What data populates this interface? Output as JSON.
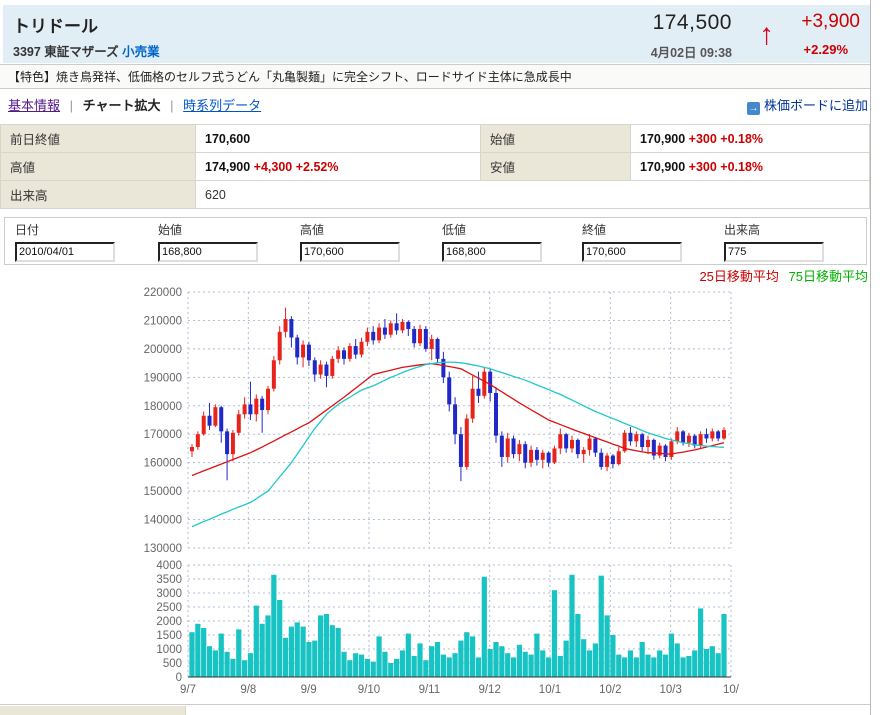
{
  "header": {
    "title": "トリドール",
    "code": "3397",
    "market": "東証マザーズ",
    "industry_link": "小売業",
    "price": "174,500",
    "datetime": "4月02日 09:38",
    "arrow_icon": "↑",
    "change": "+3,900",
    "change_pct": "+2.29%"
  },
  "feature_line": "【特色】焼き鳥発祥、低価格のセルフ式うどん「丸亀製麺」に完全シフト、ロードサイド主体に急成長中",
  "tabs": {
    "basic": "基本情報",
    "chart": "チャート拡大",
    "timeseries": "時系列データ",
    "separator": "|"
  },
  "add_board_link": {
    "icon": "→",
    "label": "株価ボードに追加"
  },
  "summary": {
    "prev_close": {
      "label": "前日終値",
      "value": "170,600",
      "change": ""
    },
    "open": {
      "label": "始値",
      "value": "170,900",
      "change": "+300 +0.18%"
    },
    "high": {
      "label": "高値",
      "value": "174,900",
      "change": "+4,300 +2.52%"
    },
    "low": {
      "label": "安値",
      "value": "170,900",
      "change": "+300 +0.18%"
    },
    "volume": {
      "label": "出来高",
      "value": "620",
      "change": ""
    }
  },
  "quote_inputs": {
    "date": {
      "label": "日付",
      "value": "2010/04/01"
    },
    "open": {
      "label": "始値",
      "value": "168,800"
    },
    "high": {
      "label": "高値",
      "value": "170,600"
    },
    "low": {
      "label": "低値",
      "value": "168,800"
    },
    "close": {
      "label": "終値",
      "value": "170,600"
    },
    "volume": {
      "label": "出来高",
      "value": "775"
    }
  },
  "legend": {
    "ma25": "25日移動平均",
    "ma75": "75日移動平均"
  },
  "colors": {
    "header_bg": "#e2eef6",
    "label_cell_bg": "#eae6d8",
    "accent_red": "#cc0000",
    "candle_up": "#e8231b",
    "candle_down": "#2028c8",
    "ma25_line": "#dd1111",
    "ma75_line": "#1fc8c8",
    "volume_bar": "#17c3c3",
    "legend_green": "#00b400",
    "grid": "#b2bfd5",
    "axis_text": "#666666",
    "link_blue": "#0055cc",
    "visited_purple": "#551a8b"
  },
  "chart_data": {
    "type": "candlestick+volume",
    "title": "",
    "x_labels": [
      "9/7",
      "9/8",
      "9/9",
      "9/10",
      "9/11",
      "9/12",
      "10/1",
      "10/2",
      "10/3",
      "10/"
    ],
    "price_axis": {
      "min": 130000,
      "max": 220000,
      "step": 10000
    },
    "volume_axis": {
      "min": 0,
      "max": 4000,
      "step": 500
    },
    "price_scale": 1000,
    "legend": [
      "25日移動平均",
      "75日移動平均"
    ],
    "grid": "dashed",
    "candles_ohlc": [
      [
        164,
        166.5,
        162,
        165.5
      ],
      [
        165.5,
        171,
        164.5,
        170
      ],
      [
        170,
        178,
        169.5,
        176.5
      ],
      [
        176.5,
        181,
        171.5,
        173
      ],
      [
        173,
        180.5,
        172.5,
        179.5
      ],
      [
        179.5,
        180,
        167,
        171
      ],
      [
        171,
        172,
        153.8,
        163
      ],
      [
        163,
        171.5,
        160.5,
        170.5
      ],
      [
        170.5,
        178.5,
        169.5,
        177
      ],
      [
        177,
        183,
        175.5,
        180.5
      ],
      [
        180.5,
        188.5,
        175,
        177
      ],
      [
        177,
        184,
        174.5,
        182.5
      ],
      [
        182.5,
        183.5,
        170.5,
        178.5
      ],
      [
        178.5,
        187,
        177,
        186
      ],
      [
        186,
        197.5,
        185,
        196
      ],
      [
        196,
        208,
        194.5,
        206
      ],
      [
        206,
        214.5,
        204,
        210.5
      ],
      [
        210.5,
        211.5,
        200.5,
        204
      ],
      [
        204,
        205,
        194.5,
        197
      ],
      [
        197,
        203,
        193.5,
        201.5
      ],
      [
        201.5,
        202.5,
        194,
        196
      ],
      [
        196,
        197,
        188.5,
        191
      ],
      [
        191,
        196,
        189.5,
        194.5
      ],
      [
        194.5,
        195.5,
        186.5,
        190.5
      ],
      [
        190.5,
        197.5,
        189.5,
        196.5
      ],
      [
        196.5,
        201,
        195,
        199.5
      ],
      [
        199.5,
        200.5,
        194.5,
        196.5
      ],
      [
        196.5,
        202,
        195.5,
        201
      ],
      [
        201,
        203.5,
        196.5,
        198
      ],
      [
        198,
        204,
        197,
        202.5
      ],
      [
        202.5,
        207.5,
        201,
        206
      ],
      [
        206,
        208,
        201.5,
        203
      ],
      [
        203,
        209,
        202,
        207.5
      ],
      [
        207.5,
        210.5,
        203.5,
        205
      ],
      [
        205,
        210,
        204,
        209
      ],
      [
        209,
        212.5,
        205,
        206.5
      ],
      [
        206.5,
        210.5,
        205.5,
        209.5
      ],
      [
        209.5,
        210,
        204.5,
        207
      ],
      [
        207,
        208,
        200.5,
        202
      ],
      [
        202,
        208.5,
        201,
        207
      ],
      [
        207,
        208,
        199,
        200
      ],
      [
        200,
        205,
        196,
        203.5
      ],
      [
        203.5,
        204,
        195,
        196.5
      ],
      [
        196.5,
        199,
        188,
        190
      ],
      [
        190,
        192,
        178,
        180.5
      ],
      [
        180.5,
        183,
        166.5,
        170
      ],
      [
        170,
        172.5,
        153.5,
        158.5
      ],
      [
        158.5,
        177,
        157.5,
        175.5
      ],
      [
        175.5,
        190.5,
        174,
        186
      ],
      [
        186,
        192,
        181,
        183.5
      ],
      [
        183.5,
        193.5,
        182.5,
        192
      ],
      [
        192,
        193,
        181.5,
        184.5
      ],
      [
        184.5,
        186.5,
        167,
        169.5
      ],
      [
        169.5,
        171,
        158.5,
        162
      ],
      [
        162,
        170.5,
        160,
        168.5
      ],
      [
        168.5,
        169.5,
        161.5,
        163
      ],
      [
        163,
        168,
        160.5,
        166.5
      ],
      [
        166.5,
        167.5,
        158,
        160
      ],
      [
        160,
        166,
        158.5,
        164.5
      ],
      [
        164.5,
        165.5,
        159,
        161
      ],
      [
        161,
        164.5,
        158,
        163.5
      ],
      [
        163.5,
        164,
        158.5,
        160
      ],
      [
        160,
        166,
        159.5,
        165
      ],
      [
        165,
        172,
        163,
        170
      ],
      [
        170,
        170.5,
        163.5,
        165
      ],
      [
        165,
        169.5,
        163.5,
        168
      ],
      [
        168,
        168.5,
        161.5,
        163
      ],
      [
        163,
        165.5,
        160,
        164.5
      ],
      [
        164.5,
        170,
        162.5,
        168.5
      ],
      [
        168.5,
        169,
        162,
        163.5
      ],
      [
        163.5,
        165,
        157.5,
        158.5
      ],
      [
        158.5,
        163.5,
        157,
        162.5
      ],
      [
        162.5,
        163,
        158,
        159.5
      ],
      [
        159.5,
        165.5,
        159,
        164
      ],
      [
        164,
        171.5,
        163.5,
        170.5
      ],
      [
        170.5,
        172.5,
        166,
        167.5
      ],
      [
        167.5,
        171,
        165.5,
        170
      ],
      [
        170,
        170.5,
        164,
        165.5
      ],
      [
        165.5,
        169.5,
        163,
        168
      ],
      [
        168,
        168.5,
        161,
        162.5
      ],
      [
        162.5,
        167,
        161.5,
        166
      ],
      [
        166,
        166.5,
        160.5,
        162
      ],
      [
        162,
        168.5,
        161,
        167.5
      ],
      [
        167.5,
        172.5,
        166.5,
        171
      ],
      [
        171,
        171.5,
        166,
        167
      ],
      [
        167,
        170.5,
        165.5,
        169.5
      ],
      [
        169.5,
        170,
        165,
        166
      ],
      [
        166,
        171,
        165,
        170
      ],
      [
        170,
        172,
        167,
        168.5
      ],
      [
        168.5,
        172,
        167.5,
        171
      ],
      [
        171,
        171.5,
        167.5,
        168.5
      ],
      [
        168.5,
        172.5,
        168,
        171.5
      ]
    ],
    "volumes": [
      1600,
      1900,
      1750,
      1100,
      950,
      1550,
      900,
      650,
      1700,
      600,
      850,
      2550,
      1900,
      2200,
      3650,
      2750,
      1400,
      1800,
      1950,
      1800,
      1250,
      1300,
      2200,
      2250,
      1850,
      1750,
      900,
      600,
      850,
      800,
      650,
      550,
      1450,
      900,
      500,
      650,
      950,
      1550,
      750,
      1200,
      600,
      1100,
      1250,
      800,
      700,
      850,
      1300,
      1600,
      1450,
      700,
      3580,
      1000,
      1250,
      1100,
      850,
      700,
      1150,
      900,
      800,
      1550,
      950,
      700,
      3100,
      750,
      1300,
      3650,
      2250,
      1350,
      950,
      1200,
      3620,
      2200,
      1500,
      800,
      700,
      950,
      700,
      1250,
      800,
      700,
      950,
      800,
      1550,
      1200,
      700,
      750,
      950,
      2450,
      1000,
      1100,
      850,
      2250
    ],
    "ma25": [
      155.5,
      156.3,
      157.1,
      157.9,
      158.7,
      159.5,
      160.3,
      161.1,
      161.9,
      162.7,
      163.5,
      164.5,
      165.5,
      166.6,
      167.6,
      168.7,
      169.8,
      170.8,
      171.9,
      173,
      174,
      175.5,
      177,
      178.5,
      180,
      181.5,
      183,
      184.6,
      186.2,
      187.8,
      189.4,
      191,
      191.5,
      192,
      192.5,
      193,
      193.5,
      193.8,
      194.1,
      194.4,
      194.6,
      194.8,
      194.5,
      194.1,
      193.8,
      193.4,
      193,
      191.9,
      190.8,
      189.7,
      188.6,
      187.5,
      186.2,
      184.9,
      183.6,
      182.3,
      181,
      179.8,
      178.6,
      177.4,
      176.2,
      175,
      174.2,
      173.4,
      172.6,
      171.8,
      171,
      170.3,
      169.5,
      168.8,
      168,
      167.3,
      166.5,
      165.8,
      165,
      164.6,
      164.2,
      163.8,
      163.5,
      163.4,
      163.3,
      163.1,
      163,
      163.4,
      163.7,
      164.1,
      164.5,
      165,
      165.5,
      166,
      166.5,
      167
    ],
    "ma75": [
      137.5,
      138.4,
      139.3,
      140.1,
      141,
      141.9,
      142.7,
      143.6,
      144.4,
      145.2,
      146,
      147.3,
      148.7,
      150,
      152.5,
      155,
      157.5,
      160,
      163,
      166,
      169,
      172,
      174.5,
      177,
      178.8,
      180.5,
      181.8,
      183,
      184.3,
      185.5,
      186.3,
      187,
      188,
      189,
      190,
      190.8,
      191.7,
      192.5,
      193.2,
      193.8,
      194.5,
      194.8,
      195.1,
      195.3,
      195.3,
      195.3,
      195.1,
      194.8,
      194.4,
      194,
      193.5,
      193,
      192.3,
      191.7,
      191,
      190.3,
      189.7,
      189,
      188.2,
      187.3,
      186.5,
      185.7,
      184.8,
      184,
      183,
      182,
      181,
      180,
      179,
      178,
      177.2,
      176.3,
      175.5,
      174.7,
      173.8,
      173,
      172.2,
      171.3,
      170.5,
      169.8,
      169.2,
      168.5,
      168,
      167.5,
      167,
      166.7,
      166.3,
      166,
      165.8,
      165.7,
      165.5,
      165.4
    ]
  }
}
